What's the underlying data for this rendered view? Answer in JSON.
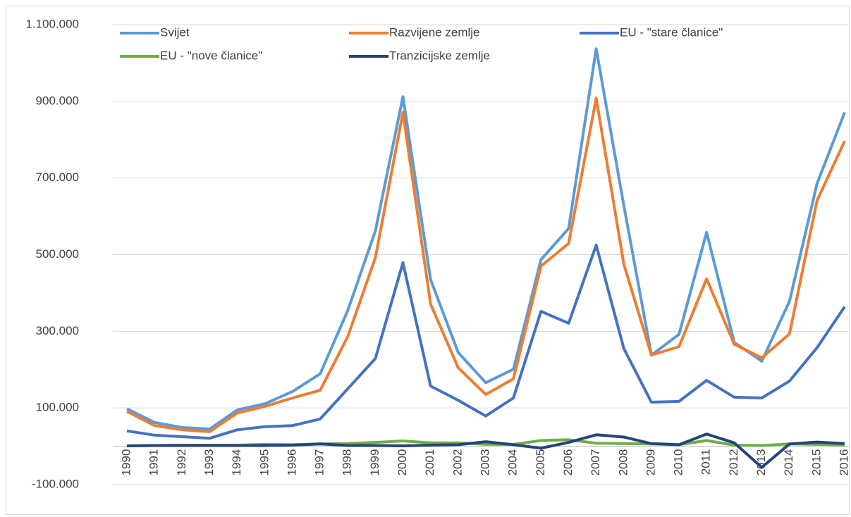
{
  "chart_data": {
    "type": "line",
    "categories": [
      "1990",
      "1991",
      "1992",
      "1993",
      "1994",
      "1995",
      "1996",
      "1997",
      "1998",
      "1999",
      "2000",
      "2001",
      "2002",
      "2003",
      "2004",
      "2005",
      "2006",
      "2007",
      "2008",
      "2009",
      "2010",
      "2011",
      "2012",
      "2013",
      "2014",
      "2015",
      "2016"
    ],
    "series": [
      {
        "name": "Svijet",
        "color": "#5b9bd5",
        "values": [
          98000,
          62000,
          49000,
          45000,
          95000,
          111000,
          143000,
          189000,
          354000,
          562000,
          912000,
          435000,
          245000,
          166000,
          201000,
          487000,
          568000,
          1037000,
          628000,
          238000,
          292000,
          558000,
          271000,
          222000,
          378000,
          685000,
          871000
        ]
      },
      {
        "name": "Razvijene zemlje",
        "color": "#ed7d31",
        "values": [
          91000,
          54000,
          43000,
          38000,
          87000,
          104000,
          126000,
          146000,
          286000,
          492000,
          871000,
          371000,
          205000,
          135000,
          176000,
          470000,
          529000,
          908000,
          475000,
          238000,
          260000,
          437000,
          266000,
          231000,
          293000,
          641000,
          796000
        ]
      },
      {
        "name": "EU - \"stare članice\"",
        "color": "#4472c4",
        "values": [
          40000,
          29000,
          25000,
          21000,
          43000,
          51000,
          54000,
          71000,
          150000,
          229000,
          479000,
          157000,
          120000,
          79000,
          126000,
          352000,
          321000,
          525000,
          255000,
          115000,
          117000,
          172000,
          128000,
          126000,
          170000,
          257000,
          364000
        ]
      },
      {
        "name": "EU - \"nove članice\"",
        "color": "#70ad47",
        "values": [
          1000,
          2000,
          3000,
          3000,
          3000,
          5000,
          4000,
          6000,
          7000,
          10000,
          14000,
          9000,
          9000,
          5000,
          5000,
          15000,
          17000,
          8000,
          7000,
          6000,
          4000,
          15000,
          3000,
          2000,
          6000,
          5000,
          3000
        ]
      },
      {
        "name": "Tranzicijske zemlje",
        "color": "#264478",
        "values": [
          1000,
          2000,
          2000,
          2000,
          2000,
          2000,
          3000,
          6000,
          2000,
          2000,
          1000,
          3000,
          4000,
          12000,
          4000,
          -5000,
          10000,
          30000,
          24000,
          7000,
          4000,
          32000,
          9000,
          -55000,
          6000,
          11000,
          7000
        ]
      }
    ],
    "ylim": [
      -100000,
      1100000
    ],
    "yticks": [
      {
        "value": -100000,
        "label": "-100.000"
      },
      {
        "value": 100000,
        "label": "100.000"
      },
      {
        "value": 300000,
        "label": "300.000"
      },
      {
        "value": 500000,
        "label": "500.000"
      },
      {
        "value": 700000,
        "label": "700.000"
      },
      {
        "value": 900000,
        "label": "900.000"
      },
      {
        "value": 1100000,
        "label": "1.100.000"
      }
    ],
    "grid": true
  }
}
